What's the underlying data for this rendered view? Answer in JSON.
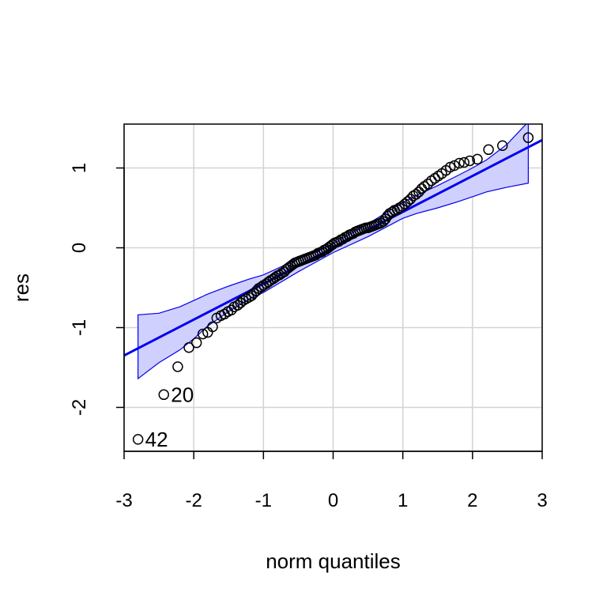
{
  "chart_data": {
    "type": "scatter",
    "title": "",
    "xlabel": "norm quantiles",
    "ylabel": "res",
    "xlim": [
      -3,
      3
    ],
    "ylim": [
      -2.55,
      1.55
    ],
    "xticks": [
      "-3",
      "-2",
      "-1",
      "0",
      "1",
      "2",
      "3"
    ],
    "yticks": [
      "-2",
      "-1",
      "0",
      "1"
    ],
    "grid": true,
    "colors": {
      "points": "#000000",
      "reference_line": "#0000ee",
      "envelope_fill": "#d0d0ff",
      "envelope_edge": "#0000ee",
      "grid": "#d3d3d3",
      "frame": "#000000"
    },
    "reference_line": {
      "intercept": 0.0,
      "slope": 0.45
    },
    "envelope": {
      "x": [
        -2.8,
        -2.5,
        -2.2,
        -2.0,
        -1.8,
        -1.5,
        -1.2,
        -1.0,
        -0.5,
        0.0,
        0.5,
        1.0,
        1.2,
        1.5,
        1.8,
        2.0,
        2.2,
        2.5,
        2.8
      ],
      "upper": [
        -0.84,
        -0.82,
        -0.74,
        -0.66,
        -0.58,
        -0.48,
        -0.39,
        -0.34,
        -0.14,
        0.05,
        0.3,
        0.57,
        0.66,
        0.78,
        0.91,
        1.0,
        1.1,
        1.3,
        1.58
      ],
      "lower": [
        -1.64,
        -1.44,
        -1.28,
        -1.14,
        -0.98,
        -0.8,
        -0.64,
        -0.56,
        -0.3,
        -0.06,
        0.14,
        0.37,
        0.43,
        0.5,
        0.58,
        0.64,
        0.7,
        0.76,
        0.81
      ]
    },
    "points": {
      "x": [
        -2.8,
        -2.43,
        -2.23,
        -2.07,
        -1.96,
        -1.87,
        -1.8,
        -1.73,
        -1.67,
        -1.61,
        -1.56,
        -1.51,
        -1.46,
        -1.42,
        -1.37,
        -1.33,
        -1.29,
        -1.25,
        -1.21,
        -1.17,
        -1.14,
        -1.1,
        -1.07,
        -1.03,
        -1.0,
        -0.96,
        -0.93,
        -0.9,
        -0.86,
        -0.83,
        -0.8,
        -0.77,
        -0.74,
        -0.7,
        -0.67,
        -0.64,
        -0.61,
        -0.58,
        -0.55,
        -0.52,
        -0.49,
        -0.46,
        -0.43,
        -0.4,
        -0.37,
        -0.34,
        -0.31,
        -0.28,
        -0.25,
        -0.22,
        -0.19,
        -0.16,
        -0.13,
        -0.1,
        -0.07,
        -0.04,
        -0.01,
        0.02,
        0.05,
        0.08,
        0.11,
        0.14,
        0.17,
        0.2,
        0.23,
        0.26,
        0.29,
        0.32,
        0.35,
        0.38,
        0.41,
        0.44,
        0.47,
        0.5,
        0.53,
        0.56,
        0.59,
        0.62,
        0.65,
        0.68,
        0.72,
        0.75,
        0.78,
        0.81,
        0.85,
        0.88,
        0.92,
        0.95,
        0.99,
        1.03,
        1.07,
        1.11,
        1.15,
        1.19,
        1.23,
        1.27,
        1.31,
        1.36,
        1.41,
        1.46,
        1.51,
        1.56,
        1.62,
        1.68,
        1.74,
        1.81,
        1.88,
        1.96,
        2.07,
        2.23,
        2.43,
        2.8
      ],
      "y": [
        -2.4,
        -1.84,
        -1.49,
        -1.25,
        -1.19,
        -1.08,
        -1.06,
        -0.99,
        -0.88,
        -0.85,
        -0.83,
        -0.8,
        -0.78,
        -0.74,
        -0.72,
        -0.69,
        -0.66,
        -0.64,
        -0.62,
        -0.6,
        -0.57,
        -0.54,
        -0.51,
        -0.49,
        -0.47,
        -0.45,
        -0.43,
        -0.41,
        -0.39,
        -0.37,
        -0.35,
        -0.34,
        -0.32,
        -0.3,
        -0.27,
        -0.25,
        -0.23,
        -0.21,
        -0.19,
        -0.18,
        -0.17,
        -0.16,
        -0.15,
        -0.14,
        -0.13,
        -0.12,
        -0.11,
        -0.1,
        -0.09,
        -0.07,
        -0.06,
        -0.05,
        -0.03,
        -0.02,
        0.0,
        0.02,
        0.04,
        0.06,
        0.07,
        0.08,
        0.1,
        0.11,
        0.13,
        0.14,
        0.16,
        0.17,
        0.18,
        0.2,
        0.21,
        0.22,
        0.23,
        0.24,
        0.25,
        0.25,
        0.26,
        0.27,
        0.28,
        0.29,
        0.3,
        0.31,
        0.33,
        0.36,
        0.4,
        0.43,
        0.45,
        0.47,
        0.48,
        0.5,
        0.52,
        0.55,
        0.58,
        0.61,
        0.65,
        0.67,
        0.7,
        0.74,
        0.77,
        0.8,
        0.84,
        0.87,
        0.9,
        0.93,
        0.97,
        1.01,
        1.03,
        1.06,
        1.07,
        1.09,
        1.11,
        1.23,
        1.28,
        1.38
      ]
    },
    "annotations": [
      {
        "text": "20",
        "x": -2.43,
        "y": -1.84
      },
      {
        "text": "42",
        "x": -2.8,
        "y": -2.4
      }
    ]
  }
}
